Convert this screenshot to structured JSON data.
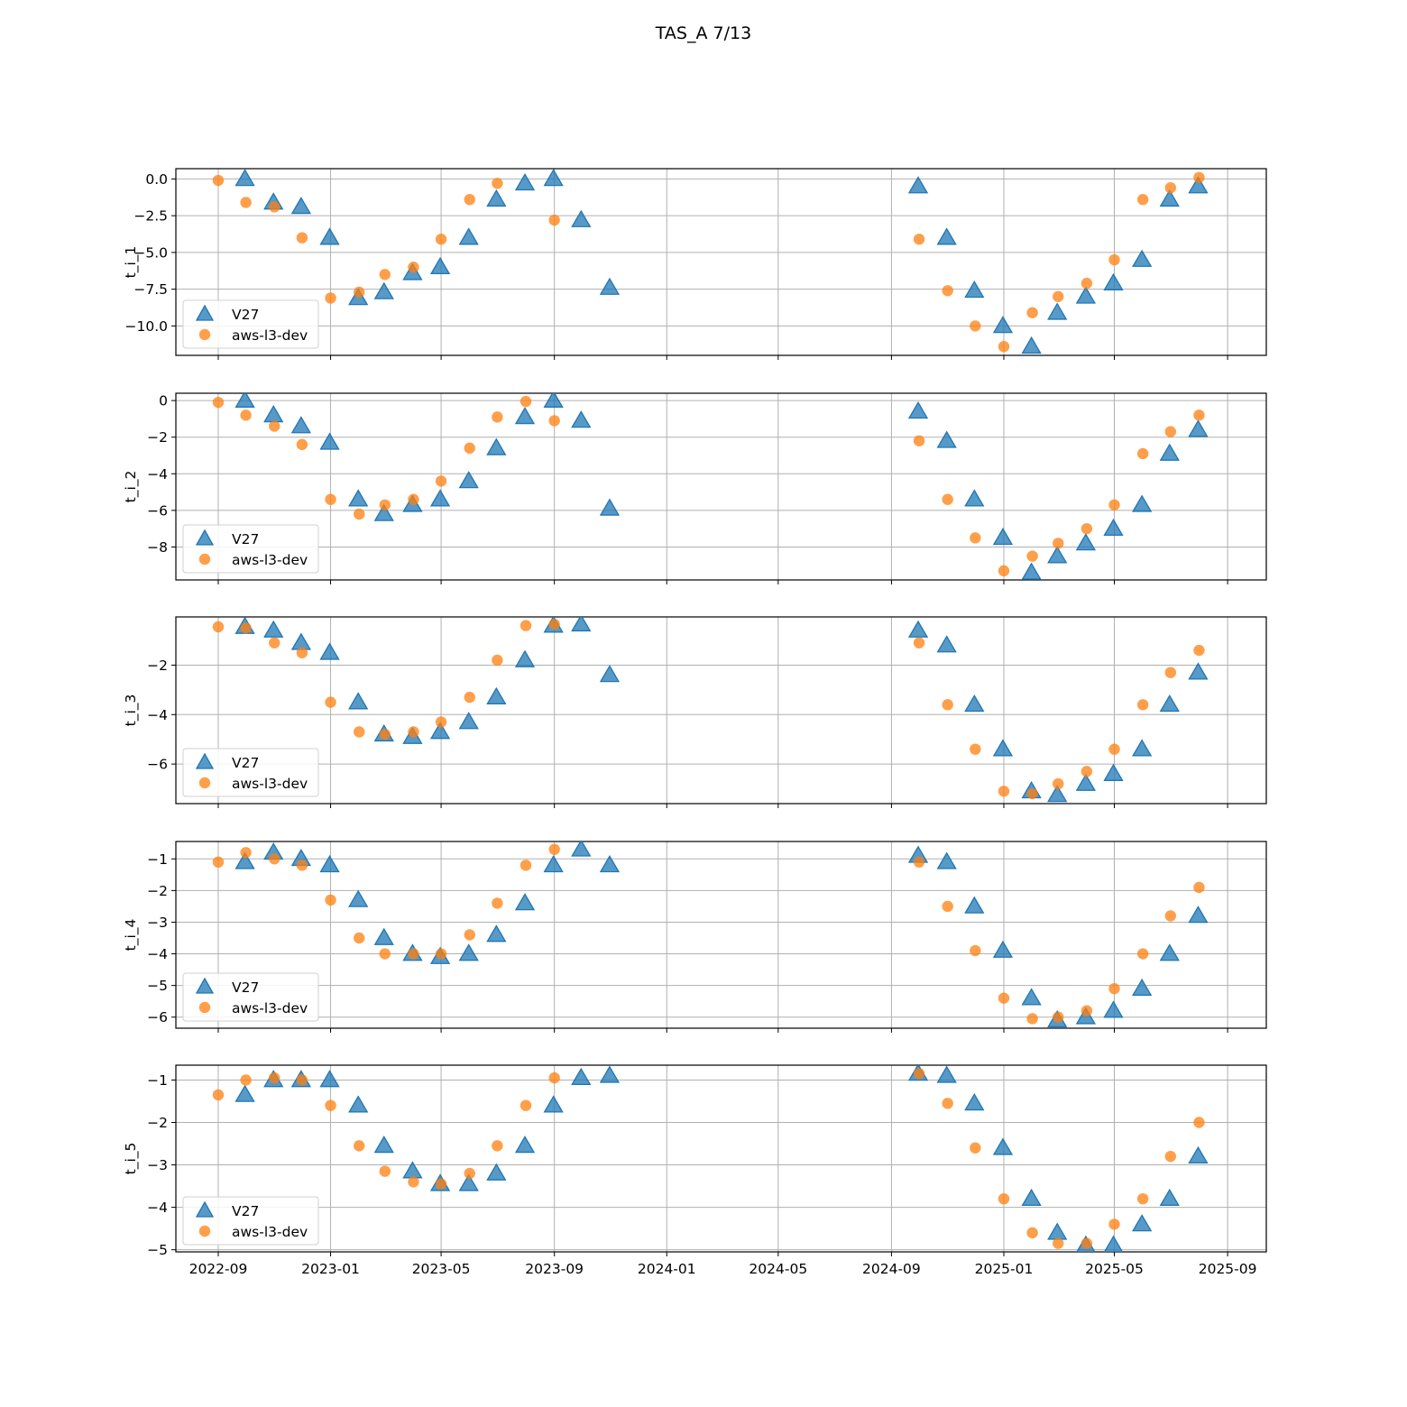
{
  "title": "TAS_A 7/13",
  "colors": {
    "v27": "#1f77b4",
    "aws": "#ff7f0e"
  },
  "chart_data": {
    "type": "scatter",
    "xaxis": {
      "ticks": [
        "2022-09",
        "2023-01",
        "2023-05",
        "2023-09",
        "2024-01",
        "2024-05",
        "2024-09",
        "2025-01",
        "2025-05",
        "2025-09"
      ],
      "range": [
        "2022-07-17",
        "2025-10-13"
      ]
    },
    "series_names": [
      "V27",
      "aws-l3-dev"
    ],
    "legend_location": "lower-left",
    "grid": true,
    "dates_v27": [
      "2022-09-30",
      "2022-10-31",
      "2022-11-30",
      "2022-12-31",
      "2023-01-31",
      "2023-02-28",
      "2023-03-31",
      "2023-04-30",
      "2023-05-31",
      "2023-06-30",
      "2023-07-31",
      "2023-08-31",
      "2023-09-30",
      "2023-10-31",
      "2024-09-30",
      "2024-10-31",
      "2024-11-30",
      "2024-12-31",
      "2025-01-31",
      "2025-02-28",
      "2025-03-31",
      "2025-04-30",
      "2025-05-31",
      "2025-06-30",
      "2025-07-31"
    ],
    "dates_aws": [
      "2022-09-01",
      "2022-10-01",
      "2022-11-01",
      "2022-12-01",
      "2023-01-01",
      "2023-02-01",
      "2023-03-01",
      "2023-04-01",
      "2023-05-01",
      "2023-06-01",
      "2023-07-01",
      "2023-08-01",
      "2023-09-01",
      "2024-10-01",
      "2024-11-01",
      "2024-12-01",
      "2025-01-01",
      "2025-02-01",
      "2025-03-01",
      "2025-04-01",
      "2025-05-01",
      "2025-06-01",
      "2025-07-01",
      "2025-08-01"
    ],
    "panels": [
      {
        "ylabel": "t_i_1",
        "ylim": [
          -12.0,
          0.7
        ],
        "yticks": [
          0.0,
          -2.5,
          -5.0,
          -7.5,
          -10.0
        ],
        "ytick_labels": [
          "0.0",
          "−2.5",
          "−5.0",
          "−7.5",
          "−10.0"
        ],
        "v27": [
          0.0,
          -1.6,
          -1.9,
          -4.0,
          -8.1,
          -7.7,
          -6.4,
          -6.0,
          -4.0,
          -1.4,
          -0.3,
          0.0,
          -2.8,
          -7.4,
          -0.5,
          -4.0,
          -7.6,
          -10.0,
          -11.4,
          -9.1,
          -8.0,
          -7.1,
          -5.5,
          -1.4,
          -0.5
        ],
        "aws": [
          -0.1,
          -1.6,
          -1.9,
          -4.0,
          -8.1,
          -7.7,
          -6.5,
          -6.0,
          -4.1,
          -1.4,
          -0.3,
          null,
          -2.8,
          -4.1,
          -7.6,
          -10.0,
          -11.4,
          -9.1,
          -8.0,
          -7.1,
          -5.5,
          -1.4,
          -0.6,
          0.1
        ]
      },
      {
        "ylabel": "t_i_2",
        "ylim": [
          -9.8,
          0.4
        ],
        "yticks": [
          0,
          -2,
          -4,
          -6,
          -8
        ],
        "ytick_labels": [
          "0",
          "−2",
          "−4",
          "−6",
          "−8"
        ],
        "v27": [
          0.0,
          -0.8,
          -1.4,
          -2.3,
          -5.4,
          -6.2,
          -5.7,
          -5.4,
          -4.4,
          -2.6,
          -0.9,
          0.0,
          -1.1,
          -5.9,
          -0.6,
          -2.2,
          -5.4,
          -7.5,
          -9.4,
          -8.5,
          -7.8,
          -7.0,
          -5.7,
          -2.9,
          -1.6
        ],
        "aws": [
          -0.1,
          -0.8,
          -1.4,
          -2.4,
          -5.4,
          -6.2,
          -5.7,
          -5.4,
          -4.4,
          -2.6,
          -0.9,
          -0.05,
          -1.1,
          -2.2,
          -5.4,
          -7.5,
          -9.3,
          -8.5,
          -7.8,
          -7.0,
          -5.7,
          -2.9,
          -1.7,
          -0.8
        ]
      },
      {
        "ylabel": "t_i_3",
        "ylim": [
          -7.6,
          -0.05
        ],
        "yticks": [
          -2,
          -4,
          -6
        ],
        "ytick_labels": [
          "−2",
          "−4",
          "−6"
        ],
        "v27": [
          -0.45,
          -0.6,
          -1.1,
          -1.5,
          -3.5,
          -4.8,
          -4.9,
          -4.7,
          -4.3,
          -3.3,
          -1.8,
          -0.4,
          -0.35,
          -2.4,
          -0.6,
          -1.2,
          -3.6,
          -5.4,
          -7.1,
          -7.25,
          -6.8,
          -6.4,
          -5.4,
          -3.6,
          -2.3
        ],
        "aws": [
          -0.45,
          -0.5,
          -1.1,
          -1.5,
          -3.5,
          -4.7,
          -4.8,
          -4.7,
          -4.3,
          -3.3,
          -1.8,
          -0.4,
          -0.35,
          -1.1,
          -3.6,
          -5.4,
          -7.1,
          -7.2,
          -6.8,
          -6.3,
          -5.4,
          -3.6,
          -2.3,
          -1.4
        ]
      },
      {
        "ylabel": "t_i_4",
        "ylim": [
          -6.35,
          -0.45
        ],
        "yticks": [
          -1,
          -2,
          -3,
          -4,
          -5,
          -6
        ],
        "ytick_labels": [
          "−1",
          "−2",
          "−3",
          "−4",
          "−5",
          "−6"
        ],
        "v27": [
          -1.1,
          -0.8,
          -1.0,
          -1.2,
          -2.3,
          -3.5,
          -4.0,
          -4.1,
          -4.0,
          -3.4,
          -2.4,
          -1.2,
          -0.7,
          -1.2,
          -0.9,
          -1.1,
          -2.5,
          -3.9,
          -5.4,
          -6.1,
          -6.0,
          -5.8,
          -5.1,
          -4.0,
          -2.8
        ],
        "aws": [
          -1.1,
          -0.8,
          -1.0,
          -1.2,
          -2.3,
          -3.5,
          -4.0,
          -4.0,
          -4.0,
          -3.4,
          -2.4,
          -1.2,
          -0.7,
          -1.1,
          -2.5,
          -3.9,
          -5.4,
          -6.05,
          -6.0,
          -5.8,
          -5.1,
          -4.0,
          -2.8,
          -1.9
        ]
      },
      {
        "ylabel": "t_i_5",
        "ylim": [
          -5.05,
          -0.65
        ],
        "yticks": [
          -1,
          -2,
          -3,
          -4,
          -5
        ],
        "ytick_labels": [
          "−1",
          "−2",
          "−3",
          "−4",
          "−5"
        ],
        "v27": [
          -1.35,
          -1.0,
          -1.0,
          -1.0,
          -1.6,
          -2.55,
          -3.15,
          -3.45,
          -3.45,
          -3.2,
          -2.55,
          -1.6,
          -0.95,
          -0.9,
          -0.85,
          -0.9,
          -1.55,
          -2.6,
          -3.8,
          -4.6,
          -4.9,
          -4.9,
          -4.4,
          -3.8,
          -2.8
        ],
        "aws": [
          -1.35,
          -1.0,
          -0.95,
          -1.0,
          -1.6,
          -2.55,
          -3.15,
          -3.4,
          -3.45,
          -3.2,
          -2.55,
          -1.6,
          -0.95,
          -0.85,
          -1.55,
          -2.6,
          -3.8,
          -4.6,
          -4.85,
          -4.85,
          -4.4,
          -3.8,
          -2.8,
          -2.0
        ]
      }
    ]
  }
}
